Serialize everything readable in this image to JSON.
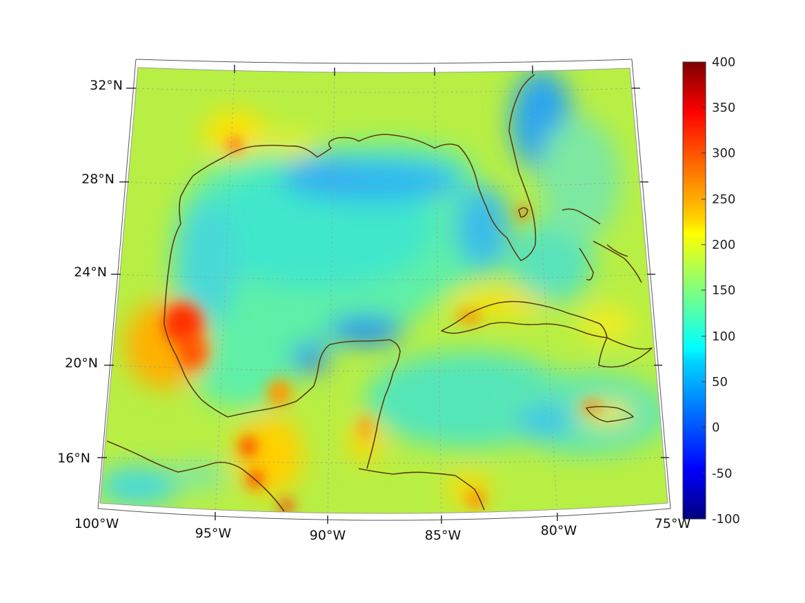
{
  "map": {
    "projection": "conic",
    "field": "smooth scalar field over Gulf of Mexico and Caribbean",
    "coastline_color": "#5a3d10",
    "graticule": true
  },
  "lon_ticks": [
    "100°W",
    "95°W",
    "90°W",
    "85°W",
    "80°W",
    "75°W"
  ],
  "lat_ticks": [
    "16°N",
    "20°N",
    "24°N",
    "28°N",
    "32°N"
  ],
  "colorbar": {
    "colormap": "jet",
    "min": -100,
    "max": 400,
    "ticks": [
      "400",
      "350",
      "300",
      "250",
      "200",
      "150",
      "100",
      "50",
      "0",
      "-50",
      "-100"
    ]
  }
}
